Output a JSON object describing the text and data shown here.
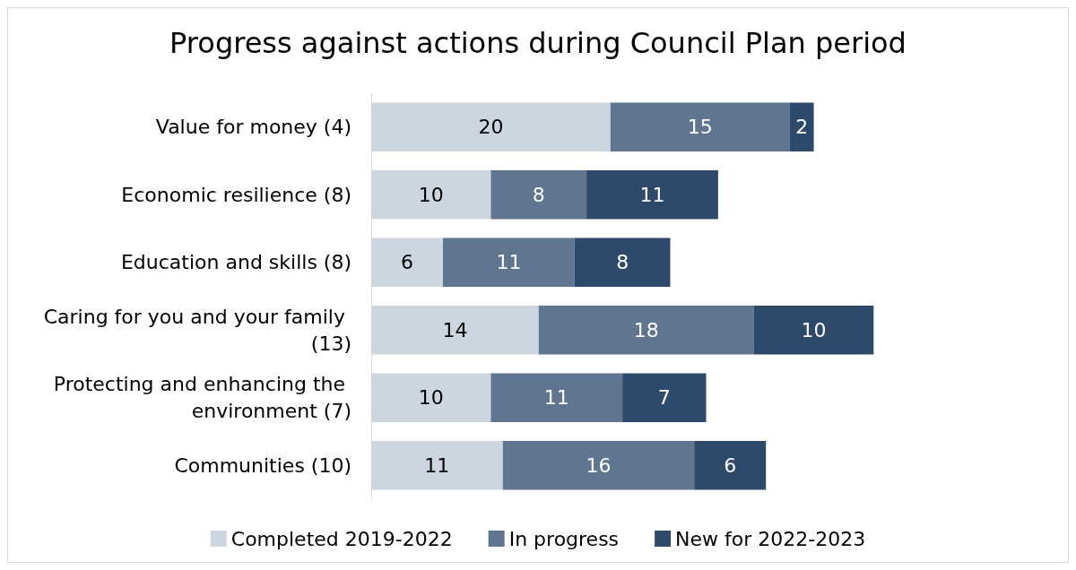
{
  "chart_data": {
    "type": "bar",
    "orientation": "horizontal",
    "stacked": true,
    "title": "Progress against actions during Council Plan period",
    "categories": [
      "Value for money (4)",
      "Economic resilience (8)",
      "Education and skills (8)",
      "Caring for you and your family (13)",
      "Protecting and enhancing the environment (7)",
      "Communities (10)"
    ],
    "series": [
      {
        "name": "Completed 2019-2022",
        "color": "#cdd5df",
        "values": [
          20,
          10,
          6,
          14,
          10,
          11
        ]
      },
      {
        "name": "In progress",
        "color": "#5f7590",
        "values": [
          15,
          8,
          11,
          18,
          11,
          16
        ]
      },
      {
        "name": "New for 2022-2023",
        "color": "#2e4a6b",
        "values": [
          2,
          11,
          8,
          10,
          7,
          6
        ]
      }
    ],
    "data_labels": true,
    "legend": "bottom",
    "tick_labels": "y"
  }
}
